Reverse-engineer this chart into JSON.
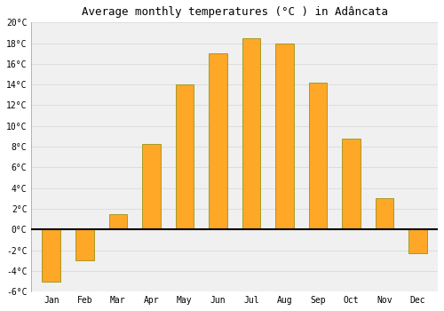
{
  "months": [
    "Jan",
    "Feb",
    "Mar",
    "Apr",
    "May",
    "Jun",
    "Jul",
    "Aug",
    "Sep",
    "Oct",
    "Nov",
    "Dec"
  ],
  "values": [
    -5.0,
    -3.0,
    1.5,
    8.3,
    14.0,
    17.0,
    18.5,
    18.0,
    14.2,
    8.8,
    3.0,
    -2.3
  ],
  "bar_color": "#FFA726",
  "bar_edge_color": "#888800",
  "title": "Average monthly temperatures (°C ) in Adâncata",
  "title_fontsize": 9,
  "ylim": [
    -6,
    20
  ],
  "yticks": [
    -6,
    -4,
    -2,
    0,
    2,
    4,
    6,
    8,
    10,
    12,
    14,
    16,
    18,
    20
  ],
  "background_color": "#ffffff",
  "plot_bg_color": "#f0f0f0",
  "grid_color": "#dddddd",
  "zero_line_color": "#000000",
  "bar_width": 0.55
}
